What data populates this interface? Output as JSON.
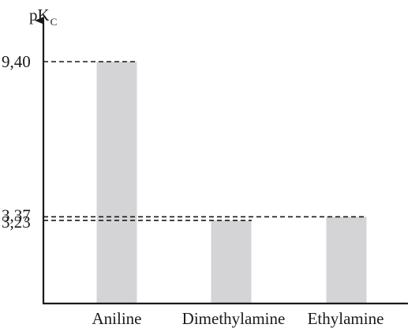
{
  "chart_data": {
    "type": "bar",
    "ylabel_main": "pK",
    "ylabel_sub": "C",
    "categories": [
      "Aniline",
      "Dimethylamine",
      "Ethylamine"
    ],
    "values": [
      9.4,
      3.23,
      3.37
    ],
    "value_labels": [
      "9,40",
      "3,23",
      "3,37"
    ],
    "colors": {
      "bar": "#d4d4d6",
      "axis": "#1a1a1a"
    }
  }
}
